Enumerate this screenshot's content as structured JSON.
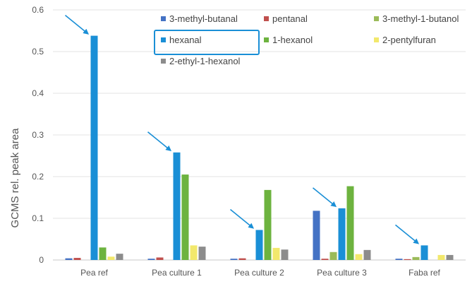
{
  "chart_data": {
    "type": "bar",
    "title": "",
    "xlabel": "",
    "ylabel": "GCMS rel. peak area",
    "ylim": [
      0,
      0.6
    ],
    "yticks": [
      "0",
      "0.1",
      "0.2",
      "0.3",
      "0.4",
      "0.5",
      "0.6"
    ],
    "grid": true,
    "legend_position": "top-right",
    "categories": [
      "Pea ref",
      "Pea culture 1",
      "Pea culture 2",
      "Pea culture 3",
      "Faba ref"
    ],
    "series": [
      {
        "name": "3-methyl-butanal",
        "color": "#4472C4",
        "values": [
          0.004,
          0.003,
          0.003,
          0.118,
          0.003
        ]
      },
      {
        "name": "pentanal",
        "color": "#C0504D",
        "values": [
          0.005,
          0.006,
          0.004,
          0.003,
          0.002
        ]
      },
      {
        "name": "3-methyl-1-butanol",
        "color": "#9BBB59",
        "values": [
          0.0,
          0.0,
          0.0,
          0.019,
          0.007
        ]
      },
      {
        "name": "hexanal",
        "color": "#1A8FD6",
        "values": [
          0.538,
          0.258,
          0.072,
          0.124,
          0.035
        ]
      },
      {
        "name": "1-hexanol",
        "color": "#6DB33F",
        "values": [
          0.03,
          0.205,
          0.168,
          0.177,
          0.0
        ]
      },
      {
        "name": "2-pentylfuran",
        "color": "#F2E86C",
        "values": [
          0.008,
          0.035,
          0.029,
          0.014,
          0.012
        ]
      },
      {
        "name": "2-ethyl-1-hexanol",
        "color": "#8C8C8C",
        "values": [
          0.015,
          0.032,
          0.025,
          0.024,
          0.012
        ]
      }
    ],
    "highlighted_series": "hexanal",
    "arrows_point_to": "hexanal"
  }
}
